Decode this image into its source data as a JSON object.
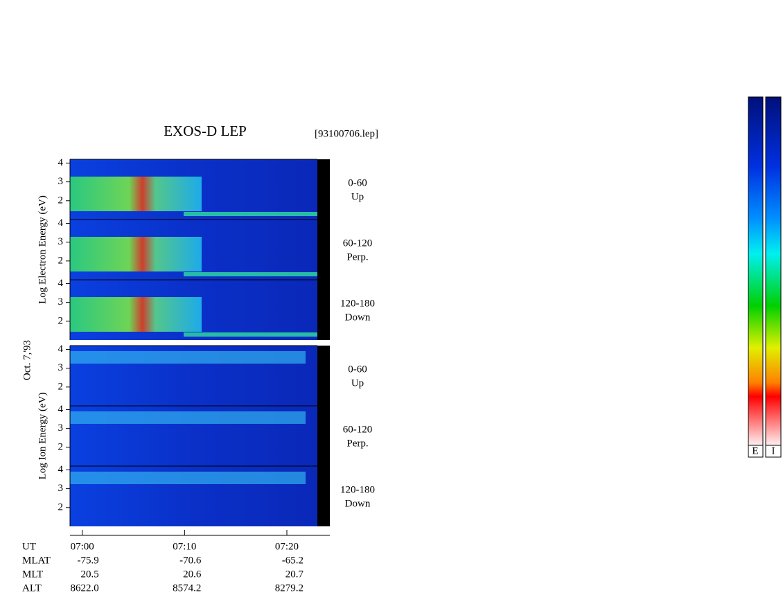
{
  "chart_data": {
    "type": "spectrogram",
    "title": "EXOS-D LEP",
    "subtitle": "[93100706.lep]",
    "date": "Oct. 7,'93",
    "groups": [
      {
        "ylabel": "Log Electron Energy (eV)",
        "panels": [
          {
            "label": [
              "0-60",
              "Up"
            ],
            "ylim": [
              1,
              4.2
            ],
            "yticks": [
              2,
              3,
              4
            ]
          },
          {
            "label": [
              "60-120",
              "Perp."
            ],
            "ylim": [
              1,
              4.2
            ],
            "yticks": [
              2,
              3,
              4
            ]
          },
          {
            "label": [
              "120-180",
              "Down"
            ],
            "ylim": [
              1,
              4.2
            ],
            "yticks": [
              2,
              3,
              4
            ]
          }
        ]
      },
      {
        "ylabel": "Log Ion Energy (eV)",
        "panels": [
          {
            "label": [
              "0-60",
              "Up"
            ],
            "ylim": [
              1,
              4.2
            ],
            "yticks": [
              2,
              3,
              4
            ]
          },
          {
            "label": [
              "60-120",
              "Perp."
            ],
            "ylim": [
              1,
              4.2
            ],
            "yticks": [
              2,
              3,
              4
            ]
          },
          {
            "label": [
              "120-180",
              "Down"
            ],
            "ylim": [
              1,
              4.2
            ],
            "yticks": [
              2,
              3,
              4
            ]
          }
        ]
      }
    ],
    "xlabel": "UT",
    "xlim": [
      418.8,
      444.2
    ],
    "xticks": [
      {
        "value": 420,
        "label": "07:00"
      },
      {
        "value": 430,
        "label": "07:10"
      },
      {
        "value": 440,
        "label": "07:20"
      }
    ],
    "ephemeris": [
      {
        "name": "MLAT",
        "values": [
          "-75.9",
          "-70.6",
          "-65.2"
        ]
      },
      {
        "name": "MLT",
        "values": [
          "20.5",
          "20.6",
          "20.7"
        ]
      },
      {
        "name": "ALT",
        "values": [
          "8622.0",
          "8574.2",
          "8279.2"
        ]
      }
    ],
    "colorbar_labels": [
      "E",
      "I"
    ]
  }
}
